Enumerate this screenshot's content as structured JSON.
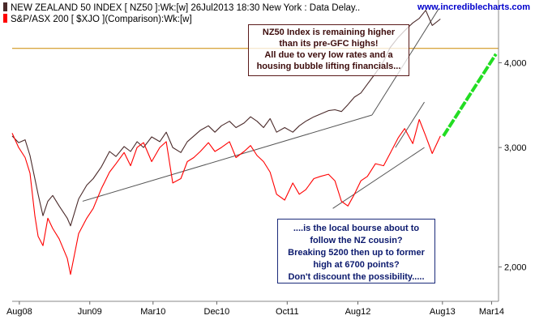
{
  "legend": {
    "nz50": {
      "label": "NEW ZEALAND 50 INDEX [ NZ50 ]:Wk:[w]  26Jul2013 18:30 New York : Data Delay..",
      "color": "#4a2a2a"
    },
    "asx": {
      "label": "S&P/ASX 200 [ $XJO ](Comparison):Wk:[w]",
      "color": "#ff0000"
    }
  },
  "site": "www.incrediblecharts.com",
  "annotations": {
    "top_box": [
      "NZ50 Index is remaining higher",
      "than its pre-GFC highs!",
      "All due to very low rates and a",
      "housing bubble lifting financials..."
    ],
    "bottom_box": [
      "....is the local bourse about to",
      "follow the NZ cousin?",
      "Breaking 5200 then up to former",
      "high at 6700 points?",
      "Don't discount the possibility....."
    ]
  },
  "chart_data": {
    "type": "line",
    "x_labels": [
      "Aug08",
      "Jun09",
      "Mar10",
      "Dec10",
      "Oct11",
      "Aug12",
      "Aug13",
      "Mar14"
    ],
    "y_ticks": [
      2000,
      3000,
      4000
    ],
    "y_tick_labels": [
      "2,000",
      "3,000",
      "4,000"
    ],
    "y_scale": "log",
    "y_range": [
      1780,
      4950
    ],
    "x_range": [
      "2008-07-01",
      "2014-03-31"
    ],
    "horizontal_line": {
      "value": 4200,
      "color": "#cc8800"
    },
    "series": [
      {
        "name": "NEW ZEALAND 50 INDEX [ NZ50 ]",
        "color": "#4a2a2a",
        "points": [
          [
            "2008-07-01",
            3120
          ],
          [
            "2008-07-29",
            3050
          ],
          [
            "2008-08-26",
            3080
          ],
          [
            "2008-09-16",
            2920
          ],
          [
            "2008-10-07",
            2700
          ],
          [
            "2008-10-21",
            2560
          ],
          [
            "2008-11-11",
            2380
          ],
          [
            "2008-12-02",
            2500
          ],
          [
            "2008-12-23",
            2550
          ],
          [
            "2009-01-20",
            2460
          ],
          [
            "2009-02-24",
            2360
          ],
          [
            "2009-03-10",
            2300
          ],
          [
            "2009-04-14",
            2520
          ],
          [
            "2009-05-19",
            2640
          ],
          [
            "2009-06-16",
            2700
          ],
          [
            "2009-07-21",
            2810
          ],
          [
            "2009-08-25",
            2960
          ],
          [
            "2009-09-22",
            2910
          ],
          [
            "2009-10-27",
            3010
          ],
          [
            "2009-11-24",
            2960
          ],
          [
            "2009-12-22",
            3060
          ],
          [
            "2010-01-19",
            3000
          ],
          [
            "2010-02-23",
            3110
          ],
          [
            "2010-03-30",
            3060
          ],
          [
            "2010-04-27",
            3160
          ],
          [
            "2010-05-25",
            3000
          ],
          [
            "2010-06-29",
            2950
          ],
          [
            "2010-07-27",
            3060
          ],
          [
            "2010-08-24",
            3120
          ],
          [
            "2010-09-21",
            3180
          ],
          [
            "2010-10-26",
            3230
          ],
          [
            "2010-11-23",
            3160
          ],
          [
            "2010-12-21",
            3230
          ],
          [
            "2011-01-25",
            3280
          ],
          [
            "2011-02-22",
            3210
          ],
          [
            "2011-03-29",
            3260
          ],
          [
            "2011-04-26",
            3330
          ],
          [
            "2011-05-24",
            3280
          ],
          [
            "2011-06-21",
            3210
          ],
          [
            "2011-07-19",
            3310
          ],
          [
            "2011-08-16",
            3160
          ],
          [
            "2011-09-20",
            3210
          ],
          [
            "2011-10-25",
            3160
          ],
          [
            "2011-11-22",
            3230
          ],
          [
            "2011-12-20",
            3280
          ],
          [
            "2012-01-24",
            3330
          ],
          [
            "2012-02-21",
            3360
          ],
          [
            "2012-03-27",
            3400
          ],
          [
            "2012-04-24",
            3410
          ],
          [
            "2012-05-22",
            3390
          ],
          [
            "2012-06-19",
            3470
          ],
          [
            "2012-07-17",
            3560
          ],
          [
            "2012-08-14",
            3610
          ],
          [
            "2012-09-11",
            3720
          ],
          [
            "2012-10-16",
            3860
          ],
          [
            "2012-11-20",
            4020
          ],
          [
            "2012-12-18",
            4210
          ],
          [
            "2013-01-22",
            4360
          ],
          [
            "2013-02-19",
            4460
          ],
          [
            "2013-03-26",
            4580
          ],
          [
            "2013-04-23",
            4650
          ],
          [
            "2013-05-21",
            4780
          ],
          [
            "2013-06-18",
            4540
          ],
          [
            "2013-07-23",
            4640
          ]
        ]
      },
      {
        "name": "S&P/ASX 200 [ $XJO ]",
        "color": "#ff0000",
        "points": [
          [
            "2008-07-01",
            3150
          ],
          [
            "2008-07-29",
            3000
          ],
          [
            "2008-08-26",
            2900
          ],
          [
            "2008-09-16",
            2750
          ],
          [
            "2008-10-07",
            2380
          ],
          [
            "2008-10-21",
            2220
          ],
          [
            "2008-11-11",
            2150
          ],
          [
            "2008-12-02",
            2360
          ],
          [
            "2008-12-23",
            2280
          ],
          [
            "2009-01-20",
            2200
          ],
          [
            "2009-02-24",
            2060
          ],
          [
            "2009-03-10",
            1950
          ],
          [
            "2009-04-14",
            2240
          ],
          [
            "2009-05-19",
            2360
          ],
          [
            "2009-06-16",
            2440
          ],
          [
            "2009-07-21",
            2610
          ],
          [
            "2009-08-25",
            2760
          ],
          [
            "2009-09-22",
            2840
          ],
          [
            "2009-10-27",
            2950
          ],
          [
            "2009-11-24",
            2820
          ],
          [
            "2009-12-22",
            3000
          ],
          [
            "2010-01-19",
            3050
          ],
          [
            "2010-02-23",
            2860
          ],
          [
            "2010-03-30",
            3000
          ],
          [
            "2010-04-27",
            3060
          ],
          [
            "2010-05-25",
            2660
          ],
          [
            "2010-06-29",
            2700
          ],
          [
            "2010-07-27",
            2860
          ],
          [
            "2010-08-24",
            2900
          ],
          [
            "2010-09-21",
            2960
          ],
          [
            "2010-10-26",
            3050
          ],
          [
            "2010-11-23",
            2960
          ],
          [
            "2010-12-21",
            3000
          ],
          [
            "2011-01-25",
            3060
          ],
          [
            "2011-02-22",
            2900
          ],
          [
            "2011-03-29",
            2960
          ],
          [
            "2011-04-26",
            3020
          ],
          [
            "2011-05-24",
            2920
          ],
          [
            "2011-06-21",
            2860
          ],
          [
            "2011-07-19",
            2760
          ],
          [
            "2011-08-16",
            2560
          ],
          [
            "2011-09-20",
            2510
          ],
          [
            "2011-10-25",
            2660
          ],
          [
            "2011-11-22",
            2560
          ],
          [
            "2011-12-20",
            2600
          ],
          [
            "2012-01-24",
            2700
          ],
          [
            "2012-02-21",
            2720
          ],
          [
            "2012-03-27",
            2740
          ],
          [
            "2012-04-24",
            2680
          ],
          [
            "2012-05-22",
            2500
          ],
          [
            "2012-06-19",
            2460
          ],
          [
            "2012-07-17",
            2560
          ],
          [
            "2012-08-14",
            2680
          ],
          [
            "2012-09-11",
            2720
          ],
          [
            "2012-10-16",
            2840
          ],
          [
            "2012-11-20",
            2820
          ],
          [
            "2012-12-18",
            2940
          ],
          [
            "2013-01-22",
            3100
          ],
          [
            "2013-02-19",
            3200
          ],
          [
            "2013-03-26",
            3040
          ],
          [
            "2013-04-23",
            3300
          ],
          [
            "2013-05-21",
            3120
          ],
          [
            "2013-06-18",
            2940
          ],
          [
            "2013-07-23",
            3120
          ]
        ]
      }
    ],
    "trendlines": [
      {
        "color": "#555555",
        "points": [
          [
            "2009-05-01",
            2500
          ],
          [
            "2012-10-01",
            3350
          ]
        ]
      },
      {
        "color": "#555555",
        "points": [
          [
            "2012-10-01",
            3350
          ],
          [
            "2013-07-15",
            4800
          ]
        ]
      },
      {
        "color": "#555555",
        "points": [
          [
            "2012-04-15",
            2440
          ],
          [
            "2013-05-15",
            3000
          ]
        ]
      },
      {
        "color": "#555555",
        "points": [
          [
            "2013-01-10",
            3000
          ],
          [
            "2013-05-15",
            3500
          ]
        ]
      }
    ],
    "projection": {
      "color": "#22dd22",
      "points": [
        [
          "2013-08-05",
          3120
        ],
        [
          "2014-03-20",
          4120
        ]
      ]
    }
  }
}
